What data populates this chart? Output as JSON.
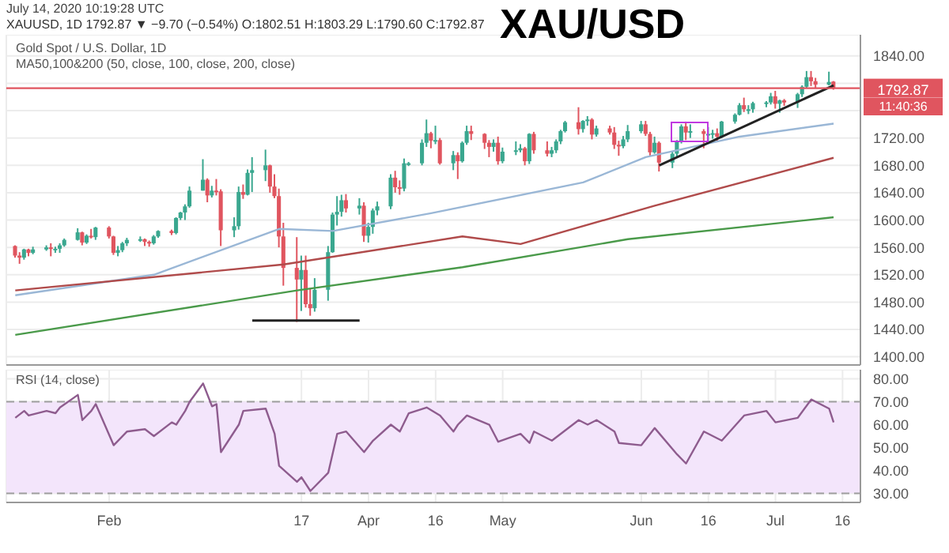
{
  "chart_data": [
    {
      "type": "candlestick",
      "title": "XAU/USD",
      "annotations": [
        "July 14, 2020 10:19:28 UTC",
        "XAUUSD, 1D 1792.87 ▼ −9.70 (−0.54%) O:1802.51 H:1803.29 L:1790.60 C:1792.87",
        "Gold Spot / U.S. Dollar, 1D",
        "MA50,100&200 (50, close, 100, close, 200, close)",
        "11:40:36"
      ],
      "x": [
        "2020-01-13",
        "2020-01-14",
        "2020-01-15",
        "2020-01-16",
        "2020-01-17",
        "2020-01-20",
        "2020-01-21",
        "2020-01-22",
        "2020-01-23",
        "2020-01-24",
        "2020-01-27",
        "2020-01-28",
        "2020-01-29",
        "2020-01-30",
        "2020-01-31",
        "2020-02-03",
        "2020-02-04",
        "2020-02-05",
        "2020-02-06",
        "2020-02-07",
        "2020-02-10",
        "2020-02-11",
        "2020-02-12",
        "2020-02-13",
        "2020-02-14",
        "2020-02-17",
        "2020-02-18",
        "2020-02-19",
        "2020-02-20",
        "2020-02-21",
        "2020-02-24",
        "2020-02-25",
        "2020-02-26",
        "2020-02-27",
        "2020-02-28",
        "2020-03-02",
        "2020-03-03",
        "2020-03-04",
        "2020-03-05",
        "2020-03-06",
        "2020-03-09",
        "2020-03-10",
        "2020-03-11",
        "2020-03-12",
        "2020-03-13",
        "2020-03-16",
        "2020-03-17",
        "2020-03-18",
        "2020-03-19",
        "2020-03-20",
        "2020-03-23",
        "2020-03-24",
        "2020-03-25",
        "2020-03-26",
        "2020-03-27",
        "2020-03-30",
        "2020-03-31",
        "2020-04-01",
        "2020-04-02",
        "2020-04-03",
        "2020-04-06",
        "2020-04-07",
        "2020-04-08",
        "2020-04-09",
        "2020-04-10",
        "2020-04-13",
        "2020-04-14",
        "2020-04-15",
        "2020-04-16",
        "2020-04-17",
        "2020-04-20",
        "2020-04-21",
        "2020-04-22",
        "2020-04-23",
        "2020-04-24",
        "2020-04-27",
        "2020-04-28",
        "2020-04-29",
        "2020-04-30",
        "2020-05-01",
        "2020-05-04",
        "2020-05-05",
        "2020-05-06",
        "2020-05-07",
        "2020-05-08",
        "2020-05-11",
        "2020-05-12",
        "2020-05-13",
        "2020-05-14",
        "2020-05-15",
        "2020-05-18",
        "2020-05-19",
        "2020-05-20",
        "2020-05-21",
        "2020-05-22",
        "2020-05-25",
        "2020-05-26",
        "2020-05-27",
        "2020-05-28",
        "2020-05-29",
        "2020-06-01",
        "2020-06-02",
        "2020-06-03",
        "2020-06-04",
        "2020-06-05",
        "2020-06-08",
        "2020-06-09",
        "2020-06-10",
        "2020-06-11",
        "2020-06-12",
        "2020-06-15",
        "2020-06-16",
        "2020-06-17",
        "2020-06-18",
        "2020-06-19",
        "2020-06-22",
        "2020-06-23",
        "2020-06-24",
        "2020-06-25",
        "2020-06-26",
        "2020-06-29",
        "2020-06-30",
        "2020-07-01",
        "2020-07-02",
        "2020-07-03",
        "2020-07-06",
        "2020-07-07",
        "2020-07-08",
        "2020-07-09",
        "2020-07-10",
        "2020-07-13",
        "2020-07-14"
      ],
      "ohlc": [
        [
          1562,
          1563,
          1545,
          1548
        ],
        [
          1548,
          1553,
          1536,
          1545
        ],
        [
          1545,
          1558,
          1542,
          1557
        ],
        [
          1557,
          1558,
          1547,
          1552
        ],
        [
          1552,
          1561,
          1550,
          1557
        ],
        [
          1557,
          1563,
          1555,
          1560
        ],
        [
          1560,
          1566,
          1547,
          1558
        ],
        [
          1558,
          1561,
          1552,
          1558
        ],
        [
          1558,
          1566,
          1552,
          1563
        ],
        [
          1563,
          1573,
          1561,
          1571
        ],
        [
          1571,
          1588,
          1570,
          1582
        ],
        [
          1582,
          1583,
          1563,
          1567
        ],
        [
          1567,
          1579,
          1565,
          1577
        ],
        [
          1577,
          1587,
          1573,
          1575
        ],
        [
          1575,
          1590,
          1571,
          1589
        ],
        [
          1589,
          1591,
          1573,
          1576
        ],
        [
          1576,
          1577,
          1549,
          1552
        ],
        [
          1552,
          1562,
          1547,
          1556
        ],
        [
          1556,
          1568,
          1553,
          1566
        ],
        [
          1566,
          1574,
          1562,
          1571
        ],
        [
          1571,
          1576,
          1568,
          1572
        ],
        [
          1572,
          1573,
          1562,
          1568
        ],
        [
          1568,
          1570,
          1561,
          1566
        ],
        [
          1566,
          1578,
          1564,
          1576
        ],
        [
          1576,
          1585,
          1574,
          1584
        ],
        [
          1584,
          1586,
          1578,
          1581
        ],
        [
          1581,
          1604,
          1579,
          1603
        ],
        [
          1603,
          1612,
          1600,
          1611
        ],
        [
          1611,
          1623,
          1600,
          1620
        ],
        [
          1620,
          1649,
          1618,
          1643
        ],
        [
          1643,
          1689,
          1643,
          1659
        ],
        [
          1659,
          1661,
          1626,
          1636
        ],
        [
          1636,
          1650,
          1633,
          1643
        ],
        [
          1643,
          1660,
          1636,
          1642
        ],
        [
          1642,
          1645,
          1562,
          1585
        ],
        [
          1585,
          1604,
          1575,
          1591
        ],
        [
          1591,
          1649,
          1586,
          1641
        ],
        [
          1641,
          1652,
          1631,
          1637
        ],
        [
          1637,
          1674,
          1636,
          1669
        ],
        [
          1669,
          1692,
          1641,
          1673
        ],
        [
          1673,
          1703,
          1657,
          1680
        ],
        [
          1680,
          1681,
          1640,
          1649
        ],
        [
          1649,
          1667,
          1632,
          1635
        ],
        [
          1635,
          1646,
          1560,
          1576
        ],
        [
          1576,
          1596,
          1504,
          1530
        ],
        [
          1530,
          1575,
          1451,
          1513
        ],
        [
          1513,
          1548,
          1467,
          1527
        ],
        [
          1527,
          1548,
          1472,
          1477
        ],
        [
          1477,
          1500,
          1460,
          1471
        ],
        [
          1471,
          1515,
          1466,
          1498
        ],
        [
          1498,
          1562,
          1482,
          1553
        ],
        [
          1553,
          1611,
          1552,
          1608
        ],
        [
          1608,
          1635,
          1592,
          1612
        ],
        [
          1612,
          1637,
          1605,
          1629
        ],
        [
          1629,
          1638,
          1611,
          1617
        ],
        [
          1617,
          1632,
          1608,
          1621
        ],
        [
          1621,
          1626,
          1568,
          1577
        ],
        [
          1577,
          1596,
          1567,
          1590
        ],
        [
          1590,
          1617,
          1580,
          1614
        ],
        [
          1614,
          1627,
          1607,
          1620
        ],
        [
          1620,
          1667,
          1616,
          1662
        ],
        [
          1662,
          1672,
          1640,
          1648
        ],
        [
          1648,
          1658,
          1637,
          1646
        ],
        [
          1646,
          1690,
          1642,
          1683
        ],
        [
          1683,
          1685,
          1679,
          1683
        ],
        [
          1683,
          1718,
          1680,
          1713
        ],
        [
          1713,
          1747,
          1707,
          1727
        ],
        [
          1727,
          1729,
          1705,
          1716
        ],
        [
          1716,
          1738,
          1711,
          1717
        ],
        [
          1717,
          1720,
          1681,
          1683
        ],
        [
          1683,
          1701,
          1673,
          1695
        ],
        [
          1695,
          1699,
          1660,
          1686
        ],
        [
          1686,
          1715,
          1684,
          1713
        ],
        [
          1713,
          1738,
          1710,
          1730
        ],
        [
          1730,
          1738,
          1717,
          1726
        ],
        [
          1726,
          1727,
          1704,
          1713
        ],
        [
          1713,
          1717,
          1692,
          1707
        ],
        [
          1707,
          1718,
          1700,
          1713
        ],
        [
          1713,
          1722,
          1681,
          1686
        ],
        [
          1686,
          1706,
          1683,
          1700
        ],
        [
          1700,
          1715,
          1695,
          1702
        ],
        [
          1702,
          1711,
          1699,
          1705
        ],
        [
          1705,
          1707,
          1680,
          1686
        ],
        [
          1686,
          1727,
          1682,
          1726
        ],
        [
          1726,
          1729,
          1697,
          1702
        ],
        [
          1702,
          1715,
          1693,
          1697
        ],
        [
          1697,
          1707,
          1692,
          1702
        ],
        [
          1702,
          1718,
          1698,
          1715
        ],
        [
          1715,
          1732,
          1711,
          1730
        ],
        [
          1730,
          1745,
          1728,
          1743
        ],
        [
          1743,
          1765,
          1725,
          1733
        ],
        [
          1733,
          1746,
          1728,
          1745
        ],
        [
          1745,
          1752,
          1738,
          1747
        ],
        [
          1747,
          1749,
          1718,
          1725
        ],
        [
          1725,
          1738,
          1722,
          1734
        ],
        [
          1734,
          1738,
          1725,
          1728
        ],
        [
          1728,
          1736,
          1704,
          1710
        ],
        [
          1710,
          1716,
          1694,
          1708
        ],
        [
          1708,
          1723,
          1705,
          1718
        ],
        [
          1718,
          1739,
          1714,
          1730
        ],
        [
          1730,
          1745,
          1727,
          1740
        ],
        [
          1740,
          1745,
          1723,
          1726
        ],
        [
          1726,
          1729,
          1694,
          1699
        ],
        [
          1699,
          1722,
          1697,
          1713
        ],
        [
          1713,
          1715,
          1671,
          1684
        ],
        [
          1684,
          1700,
          1676,
          1697
        ],
        [
          1697,
          1717,
          1692,
          1715
        ],
        [
          1715,
          1740,
          1712,
          1737
        ],
        [
          1737,
          1744,
          1717,
          1728
        ],
        [
          1728,
          1740,
          1720,
          1730
        ],
        [
          1730,
          1733,
          1705,
          1726
        ],
        [
          1726,
          1736,
          1714,
          1726
        ],
        [
          1726,
          1732,
          1719,
          1727
        ],
        [
          1727,
          1734,
          1716,
          1722
        ],
        [
          1722,
          1745,
          1720,
          1744
        ],
        [
          1744,
          1756,
          1741,
          1754
        ],
        [
          1754,
          1771,
          1753,
          1768
        ],
        [
          1768,
          1779,
          1758,
          1762
        ],
        [
          1762,
          1768,
          1755,
          1762
        ],
        [
          1762,
          1773,
          1757,
          1771
        ],
        [
          1771,
          1774,
          1765,
          1772
        ],
        [
          1772,
          1786,
          1769,
          1781
        ],
        [
          1781,
          1789,
          1763,
          1770
        ],
        [
          1770,
          1776,
          1757,
          1775
        ],
        [
          1775,
          1777,
          1767,
          1772
        ],
        [
          1772,
          1786,
          1764,
          1784
        ],
        [
          1784,
          1797,
          1780,
          1795
        ],
        [
          1795,
          1818,
          1793,
          1809
        ],
        [
          1809,
          1818,
          1796,
          1803
        ],
        [
          1803,
          1808,
          1793,
          1798
        ],
        [
          1798,
          1817,
          1797,
          1802
        ],
        [
          1802.51,
          1803.29,
          1790.6,
          1792.87
        ]
      ],
      "series": [
        {
          "type": "line",
          "color": "#9ab7d6",
          "x": [
            "2020-01-13",
            "2020-02-13",
            "2020-03-12",
            "2020-03-24",
            "2020-04-15",
            "2020-05-19",
            "2020-06-02",
            "2020-06-23",
            "2020-07-14"
          ],
          "values": [
            1490,
            1520,
            1587,
            1584,
            1610,
            1655,
            1692,
            1722,
            1741
          ]
        },
        {
          "type": "line",
          "color": "#b04b4b",
          "x": [
            "2020-01-13",
            "2020-03-13",
            "2020-04-22",
            "2020-05-05",
            "2020-06-04",
            "2020-07-14"
          ],
          "values": [
            1497,
            1535,
            1576,
            1565,
            1621,
            1691
          ]
        },
        {
          "type": "line",
          "color": "#4a9a4a",
          "x": [
            "2020-01-13",
            "2020-03-16",
            "2020-04-22",
            "2020-05-29",
            "2020-07-14"
          ],
          "values": [
            1432,
            1497,
            1531,
            1572,
            1604
          ]
        },
        {
          "type": "line",
          "color": "#222222",
          "x": [
            "2020-06-05",
            "2020-07-14"
          ],
          "values": [
            1680,
            1797
          ]
        },
        {
          "type": "line",
          "color": "#222222",
          "x": [
            "2020-03-06",
            "2020-03-30"
          ],
          "values": [
            1453,
            1453
          ]
        }
      ],
      "ref_lines": [
        {
          "axis": "y",
          "value": 1792.87,
          "label": "1792.87",
          "color": "#e0555f"
        }
      ],
      "xlim": [
        "2020-01-11",
        "2020-07-20"
      ],
      "xticks": [
        {
          "value": "2020-02-03",
          "label": null
        },
        {
          "value": "2020-03-17",
          "label": null
        },
        {
          "value": "2020-04-01",
          "label": null
        },
        {
          "value": "2020-04-16",
          "label": null
        },
        {
          "value": "2020-05-01",
          "label": null
        },
        {
          "value": "2020-06-01",
          "label": null
        },
        {
          "value": "2020-06-16",
          "label": null
        },
        {
          "value": "2020-07-01",
          "label": null
        },
        {
          "value": "2020-07-16",
          "label": null
        }
      ],
      "ylim": [
        1388,
        1871
      ],
      "yticks": [
        {
          "value": 1400,
          "label": "1400.00"
        },
        {
          "value": 1440,
          "label": "1440.00"
        },
        {
          "value": 1480,
          "label": "1480.00"
        },
        {
          "value": 1520,
          "label": "1520.00"
        },
        {
          "value": 1560,
          "label": "1560.00"
        },
        {
          "value": 1600,
          "label": "1600.00"
        },
        {
          "value": 1640,
          "label": "1640.00"
        },
        {
          "value": 1680,
          "label": "1680.00"
        },
        {
          "value": 1720,
          "label": "1720.00"
        },
        {
          "value": 1760,
          "label": null
        },
        {
          "value": 1800,
          "label": null
        },
        {
          "value": 1840,
          "label": "1840.00"
        }
      ],
      "grid": true,
      "tick_labels": "y"
    },
    {
      "type": "line",
      "annotations": [
        "RSI (14, close)"
      ],
      "series": [
        {
          "color": "#8e5c8e",
          "x": [
            "2020-01-13",
            "2020-01-15",
            "2020-01-16",
            "2020-01-20",
            "2020-01-22",
            "2020-01-23",
            "2020-01-27",
            "2020-01-28",
            "2020-01-30",
            "2020-01-31",
            "2020-02-04",
            "2020-02-05",
            "2020-02-07",
            "2020-02-11",
            "2020-02-13",
            "2020-02-17",
            "2020-02-18",
            "2020-02-20",
            "2020-02-21",
            "2020-02-24",
            "2020-02-26",
            "2020-02-27",
            "2020-02-28",
            "2020-03-03",
            "2020-03-04",
            "2020-03-09",
            "2020-03-11",
            "2020-03-12",
            "2020-03-16",
            "2020-03-17",
            "2020-03-19",
            "2020-03-23",
            "2020-03-25",
            "2020-03-27",
            "2020-03-31",
            "2020-04-02",
            "2020-04-06",
            "2020-04-08",
            "2020-04-10",
            "2020-04-14",
            "2020-04-17",
            "2020-04-20",
            "2020-04-21",
            "2020-04-23",
            "2020-04-28",
            "2020-04-30",
            "2020-05-05",
            "2020-05-07",
            "2020-05-08",
            "2020-05-12",
            "2020-05-18",
            "2020-05-20",
            "2020-05-22",
            "2020-05-26",
            "2020-05-27",
            "2020-06-01",
            "2020-06-04",
            "2020-06-09",
            "2020-06-11",
            "2020-06-15",
            "2020-06-19",
            "2020-06-24",
            "2020-06-29",
            "2020-07-01",
            "2020-07-06",
            "2020-07-09",
            "2020-07-13",
            "2020-07-14"
          ],
          "values": [
            63,
            66,
            64,
            66,
            65,
            67.5,
            73,
            62,
            66,
            69,
            51,
            53,
            57,
            58,
            55,
            61,
            60,
            66,
            70,
            78,
            68,
            69,
            48,
            60,
            66,
            67,
            56,
            42,
            35,
            37,
            31,
            39,
            56,
            57,
            48,
            53,
            60,
            57,
            65,
            67.5,
            64,
            57,
            60,
            64,
            60,
            52.5,
            56,
            52,
            57,
            53,
            62,
            60,
            62,
            57,
            52,
            51,
            58.5,
            47,
            43,
            57,
            53,
            64,
            66,
            61,
            63,
            71,
            67,
            61
          ]
        }
      ],
      "bands": [
        {
          "axis": "y",
          "from": 30,
          "to": 70,
          "color": "#f3e5fb"
        }
      ],
      "xlim": [
        "2020-01-11",
        "2020-07-20"
      ],
      "xticks": [
        {
          "value": "2020-02-03",
          "label": "Feb"
        },
        {
          "value": "2020-03-17",
          "label": "17"
        },
        {
          "value": "2020-04-01",
          "label": "Apr"
        },
        {
          "value": "2020-04-16",
          "label": "16"
        },
        {
          "value": "2020-05-01",
          "label": "May"
        },
        {
          "value": "2020-06-01",
          "label": "Jun"
        },
        {
          "value": "2020-06-16",
          "label": "16"
        },
        {
          "value": "2020-07-01",
          "label": "Jul"
        },
        {
          "value": "2020-07-16",
          "label": "16"
        }
      ],
      "ylim": [
        26,
        84
      ],
      "yticks": [
        {
          "value": 30,
          "label": "30.00"
        },
        {
          "value": 40,
          "label": "40.00"
        },
        {
          "value": 50,
          "label": "50.00"
        },
        {
          "value": 60,
          "label": "60.00"
        },
        {
          "value": 70,
          "label": "70.00"
        },
        {
          "value": 80,
          "label": "80.00"
        }
      ],
      "grid": true
    }
  ]
}
